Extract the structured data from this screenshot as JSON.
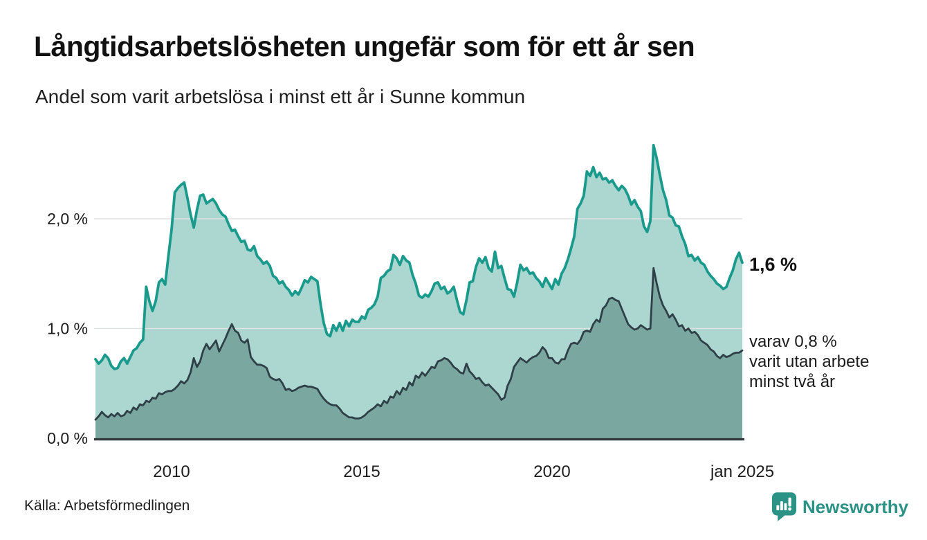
{
  "colors": {
    "accent_teal": "#1a9a8c",
    "mint_fill": "#abd7d0",
    "sage_fill": "#7aa7a0",
    "dark_line": "#2e4046",
    "axis": "#343a3d",
    "gridline": "#dfe2e2",
    "text": "#1d1d1d",
    "brand_teal": "#2b9286"
  },
  "branding": {
    "name": "Newsworthy",
    "logo_icon": "speech-bubble-bar-chart-icon"
  },
  "chart_data": {
    "type": "area",
    "title": "Långtidsarbetslösheten ungefär som för ett år sen",
    "subtitle": "Andel som varit arbetslösa i minst ett år i Sunne kommun",
    "source": "Källa: Arbetsförmedlingen",
    "unit": "%",
    "x_interval": "monthly",
    "x_start": "2008-01",
    "x_end": "2025-01",
    "ylim": [
      0,
      2.8
    ],
    "grid": "horizontal",
    "legend_position": "end-of-line-labels",
    "annotations": {
      "primary": "1,6 %",
      "secondary_lines": [
        "varav 0,8 %",
        "varit utan arbete",
        "minst två år"
      ]
    },
    "yticks": [
      {
        "value": 0,
        "label": "0,0 %"
      },
      {
        "value": 1,
        "label": "1,0 %"
      },
      {
        "value": 2,
        "label": "2,0 %"
      }
    ],
    "xticks": [
      {
        "month_index": 24,
        "label": "2010"
      },
      {
        "month_index": 84,
        "label": "2015"
      },
      {
        "month_index": 144,
        "label": "2020"
      },
      {
        "month_index": 204,
        "label": "jan 2025"
      }
    ],
    "series": [
      {
        "name": "Andel arbetslösa minst ett år",
        "end_value": 1.6,
        "line": "#1a9a8c",
        "fill": "#abd7d0",
        "values": [
          0.72,
          0.68,
          0.71,
          0.76,
          0.73,
          0.66,
          0.63,
          0.64,
          0.7,
          0.73,
          0.68,
          0.74,
          0.8,
          0.82,
          0.87,
          0.9,
          1.38,
          1.25,
          1.16,
          1.25,
          1.42,
          1.45,
          1.4,
          1.66,
          1.9,
          2.24,
          2.28,
          2.31,
          2.33,
          2.19,
          2.04,
          1.92,
          2.08,
          2.21,
          2.22,
          2.14,
          2.16,
          2.18,
          2.14,
          2.08,
          2.04,
          2.02,
          1.95,
          1.89,
          1.9,
          1.84,
          1.79,
          1.8,
          1.72,
          1.71,
          1.75,
          1.66,
          1.63,
          1.59,
          1.61,
          1.57,
          1.48,
          1.46,
          1.41,
          1.43,
          1.38,
          1.35,
          1.3,
          1.34,
          1.31,
          1.37,
          1.44,
          1.42,
          1.47,
          1.45,
          1.43,
          1.22,
          1.05,
          0.95,
          0.93,
          1.03,
          0.98,
          1.05,
          0.98,
          1.07,
          1.02,
          1.08,
          1.06,
          1.06,
          1.11,
          1.09,
          1.17,
          1.19,
          1.22,
          1.29,
          1.46,
          1.48,
          1.52,
          1.54,
          1.67,
          1.64,
          1.58,
          1.66,
          1.62,
          1.6,
          1.49,
          1.41,
          1.3,
          1.28,
          1.31,
          1.29,
          1.34,
          1.41,
          1.42,
          1.36,
          1.38,
          1.32,
          1.34,
          1.38,
          1.26,
          1.15,
          1.13,
          1.26,
          1.42,
          1.43,
          1.56,
          1.64,
          1.6,
          1.65,
          1.55,
          1.52,
          1.7,
          1.55,
          1.57,
          1.46,
          1.36,
          1.35,
          1.29,
          1.42,
          1.58,
          1.53,
          1.55,
          1.5,
          1.51,
          1.46,
          1.43,
          1.38,
          1.46,
          1.41,
          1.36,
          1.45,
          1.4,
          1.5,
          1.55,
          1.63,
          1.73,
          1.84,
          2.09,
          2.14,
          2.21,
          2.43,
          2.39,
          2.47,
          2.38,
          2.42,
          2.36,
          2.37,
          2.33,
          2.35,
          2.3,
          2.26,
          2.3,
          2.27,
          2.21,
          2.13,
          2.17,
          2.11,
          2.07,
          1.93,
          1.88,
          1.98,
          2.67,
          2.55,
          2.4,
          2.26,
          2.17,
          2.03,
          2.01,
          1.94,
          1.93,
          1.84,
          1.77,
          1.66,
          1.67,
          1.62,
          1.65,
          1.6,
          1.58,
          1.52,
          1.48,
          1.45,
          1.41,
          1.39,
          1.36,
          1.38,
          1.46,
          1.53,
          1.63,
          1.69,
          1.6
        ]
      },
      {
        "name": "varav utan arbete minst två år",
        "end_value": 0.8,
        "line": "#2e4046",
        "fill": "#7aa7a0",
        "values": [
          0.17,
          0.2,
          0.24,
          0.21,
          0.19,
          0.22,
          0.2,
          0.23,
          0.2,
          0.21,
          0.25,
          0.23,
          0.28,
          0.26,
          0.31,
          0.3,
          0.34,
          0.33,
          0.37,
          0.36,
          0.41,
          0.4,
          0.42,
          0.43,
          0.43,
          0.45,
          0.48,
          0.52,
          0.5,
          0.53,
          0.6,
          0.73,
          0.65,
          0.7,
          0.8,
          0.86,
          0.81,
          0.85,
          0.89,
          0.79,
          0.85,
          0.91,
          0.98,
          1.04,
          0.98,
          0.96,
          0.89,
          0.87,
          0.9,
          0.74,
          0.7,
          0.67,
          0.67,
          0.66,
          0.64,
          0.56,
          0.54,
          0.53,
          0.54,
          0.5,
          0.44,
          0.45,
          0.43,
          0.44,
          0.46,
          0.47,
          0.48,
          0.47,
          0.47,
          0.46,
          0.45,
          0.4,
          0.36,
          0.33,
          0.31,
          0.3,
          0.3,
          0.27,
          0.23,
          0.21,
          0.19,
          0.19,
          0.18,
          0.18,
          0.19,
          0.21,
          0.24,
          0.26,
          0.28,
          0.31,
          0.29,
          0.34,
          0.32,
          0.38,
          0.37,
          0.43,
          0.4,
          0.46,
          0.44,
          0.51,
          0.48,
          0.57,
          0.55,
          0.6,
          0.57,
          0.61,
          0.65,
          0.64,
          0.7,
          0.71,
          0.73,
          0.72,
          0.69,
          0.65,
          0.63,
          0.6,
          0.59,
          0.68,
          0.61,
          0.58,
          0.54,
          0.55,
          0.51,
          0.48,
          0.49,
          0.46,
          0.43,
          0.4,
          0.35,
          0.37,
          0.48,
          0.54,
          0.65,
          0.69,
          0.73,
          0.71,
          0.69,
          0.72,
          0.74,
          0.75,
          0.78,
          0.83,
          0.8,
          0.73,
          0.73,
          0.69,
          0.68,
          0.72,
          0.72,
          0.8,
          0.86,
          0.87,
          0.86,
          0.9,
          0.97,
          0.98,
          0.97,
          1.04,
          1.08,
          1.06,
          1.18,
          1.21,
          1.27,
          1.28,
          1.26,
          1.25,
          1.18,
          1.11,
          1.04,
          1.01,
          0.99,
          1.0,
          1.03,
          1.01,
          0.99,
          1.0,
          1.55,
          1.41,
          1.29,
          1.21,
          1.16,
          1.1,
          1.13,
          1.08,
          1.02,
          1.03,
          0.98,
          1.0,
          0.96,
          0.97,
          0.94,
          0.89,
          0.87,
          0.85,
          0.81,
          0.79,
          0.75,
          0.73,
          0.76,
          0.74,
          0.75,
          0.77,
          0.78,
          0.78,
          0.8
        ]
      }
    ]
  }
}
